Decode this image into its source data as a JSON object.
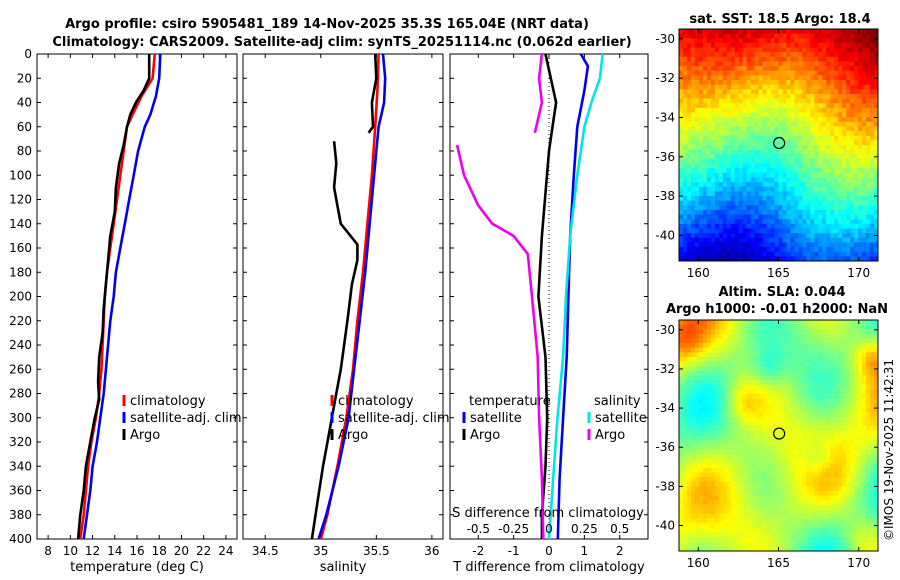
{
  "title_line1": "Argo profile: csiro 5905481_189 14-Nov-2025 35.3S 165.04E (NRT data)",
  "title_line2": "Climatology: CARS2009. Satellite-adj clim: synTS_20251114.nc (0.062d earlier)",
  "colors": {
    "clim": "#ff0000",
    "sat": "#0000ee",
    "argo": "#000000",
    "sat_s": "#00e5e5",
    "argo_s": "#ee00ee"
  },
  "chart_data": [
    {
      "type": "line",
      "name": "temperature-profile",
      "xlabel": "temperature (deg C)",
      "xlim": [
        7,
        25
      ],
      "xticks": [
        8,
        10,
        12,
        14,
        16,
        18,
        20,
        22,
        24
      ],
      "ylim": [
        0,
        400
      ],
      "yticks": [
        0,
        20,
        40,
        60,
        80,
        100,
        120,
        140,
        160,
        180,
        200,
        220,
        240,
        260,
        280,
        300,
        320,
        340,
        360,
        380,
        400
      ],
      "legend": [
        "climatology",
        "satellite-adj. clim",
        "Argo"
      ],
      "series": [
        {
          "name": "climatology",
          "color": "clim",
          "points": [
            [
              17.6,
              0
            ],
            [
              17.4,
              20
            ],
            [
              16.4,
              35
            ],
            [
              15.6,
              50
            ],
            [
              15.1,
              60
            ],
            [
              14.8,
              80
            ],
            [
              14.5,
              100
            ],
            [
              14.2,
              120
            ],
            [
              13.9,
              140
            ],
            [
              13.6,
              160
            ],
            [
              13.3,
              180
            ],
            [
              13.1,
              200
            ],
            [
              12.9,
              240
            ],
            [
              12.8,
              260
            ],
            [
              12.6,
              280
            ],
            [
              12.3,
              300
            ],
            [
              11.9,
              320
            ],
            [
              11.6,
              340
            ],
            [
              11.4,
              360
            ],
            [
              11.2,
              380
            ],
            [
              10.9,
              400
            ]
          ]
        },
        {
          "name": "satellite-adj. clim",
          "color": "sat",
          "points": [
            [
              18.1,
              0
            ],
            [
              18.0,
              20
            ],
            [
              17.7,
              35
            ],
            [
              17.2,
              50
            ],
            [
              16.7,
              60
            ],
            [
              16.1,
              80
            ],
            [
              15.7,
              100
            ],
            [
              15.3,
              120
            ],
            [
              14.9,
              140
            ],
            [
              14.5,
              160
            ],
            [
              14.1,
              180
            ],
            [
              13.9,
              200
            ],
            [
              13.6,
              220
            ],
            [
              13.4,
              240
            ],
            [
              13.2,
              260
            ],
            [
              13.0,
              280
            ],
            [
              12.7,
              300
            ],
            [
              12.4,
              320
            ],
            [
              12.0,
              340
            ],
            [
              11.8,
              360
            ],
            [
              11.5,
              380
            ],
            [
              11.2,
              400
            ]
          ]
        },
        {
          "name": "Argo",
          "color": "argo",
          "points": [
            [
              17.1,
              0
            ],
            [
              17.1,
              20
            ],
            [
              16.6,
              30
            ],
            [
              15.9,
              40
            ],
            [
              15.4,
              50
            ],
            [
              15.1,
              60
            ],
            [
              14.8,
              75
            ],
            [
              14.4,
              90
            ],
            [
              14.1,
              110
            ],
            [
              14.0,
              130
            ],
            [
              13.6,
              150
            ],
            [
              13.4,
              170
            ],
            [
              13.2,
              190
            ],
            [
              13.0,
              210
            ],
            [
              12.9,
              230
            ],
            [
              12.6,
              250
            ],
            [
              12.5,
              270
            ],
            [
              12.6,
              285
            ],
            [
              12.2,
              300
            ],
            [
              11.8,
              320
            ],
            [
              11.4,
              340
            ],
            [
              11.2,
              360
            ],
            [
              10.9,
              380
            ],
            [
              10.7,
              400
            ]
          ]
        }
      ]
    },
    {
      "type": "line",
      "name": "salinity-profile",
      "xlabel": "salinity",
      "xlim": [
        34.3,
        36.1
      ],
      "xticks": [
        34.5,
        35,
        35.5,
        36
      ],
      "xtick_labels": [
        "34.5",
        "35",
        "35.5",
        "36"
      ],
      "ylim": [
        0,
        400
      ],
      "legend": [
        "climatology",
        "satellite-adj. clim",
        "Argo"
      ],
      "series": [
        {
          "name": "climatology",
          "color": "clim",
          "points": [
            [
              35.52,
              0
            ],
            [
              35.51,
              30
            ],
            [
              35.49,
              60
            ],
            [
              35.46,
              100
            ],
            [
              35.42,
              140
            ],
            [
              35.38,
              180
            ],
            [
              35.33,
              220
            ],
            [
              35.29,
              260
            ],
            [
              35.23,
              300
            ],
            [
              35.15,
              340
            ],
            [
              35.06,
              380
            ],
            [
              35.0,
              400
            ]
          ]
        },
        {
          "name": "satellite-adj. clim",
          "color": "sat",
          "points": [
            [
              35.56,
              0
            ],
            [
              35.58,
              20
            ],
            [
              35.57,
              40
            ],
            [
              35.52,
              60
            ],
            [
              35.48,
              100
            ],
            [
              35.44,
              140
            ],
            [
              35.4,
              180
            ],
            [
              35.35,
              220
            ],
            [
              35.3,
              260
            ],
            [
              35.25,
              300
            ],
            [
              35.16,
              340
            ],
            [
              35.05,
              380
            ],
            [
              34.98,
              400
            ]
          ]
        },
        {
          "name": "Argo",
          "color": "argo",
          "points": [
            [
              35.49,
              0
            ],
            [
              35.5,
              20
            ],
            [
              35.46,
              40
            ],
            [
              35.47,
              60
            ],
            [
              35.43,
              65
            ]
          ]
        },
        {
          "name": "Argo-deep",
          "color": "argo",
          "points": [
            [
              35.12,
              72
            ],
            [
              35.14,
              90
            ],
            [
              35.12,
              110
            ],
            [
              35.15,
              125
            ],
            [
              35.18,
              140
            ],
            [
              35.33,
              157
            ],
            [
              35.33,
              170
            ],
            [
              35.28,
              190
            ],
            [
              35.24,
              220
            ],
            [
              35.18,
              260
            ],
            [
              35.14,
              280
            ],
            [
              35.08,
              310
            ],
            [
              35.02,
              340
            ],
            [
              34.97,
              370
            ],
            [
              34.92,
              400
            ]
          ]
        }
      ]
    },
    {
      "type": "line",
      "name": "difference-profile",
      "xlabel": "T difference from climatology",
      "xlim": [
        -2.8,
        2.8
      ],
      "xticks": [
        -2,
        -1,
        0,
        1,
        2
      ],
      "xtick_labels": [
        "-2",
        "-1",
        "0",
        "1",
        "2"
      ],
      "top_label": "S difference from climatology",
      "top_ticks": [
        -0.5,
        -0.25,
        0,
        0.25,
        0.5
      ],
      "top_tick_labels": [
        "-0.5",
        "-0.25",
        "0",
        "0.25",
        "0.5"
      ],
      "ylim": [
        0,
        400
      ],
      "legend_left_title": "temperature",
      "legend_left": [
        "satellite",
        "Argo"
      ],
      "legend_right_title": "salinity",
      "legend_right": [
        "satellite",
        "Argo"
      ],
      "series": [
        {
          "name": "T satellite",
          "color": "sat",
          "points": [
            [
              0.9,
              0
            ],
            [
              1.1,
              10
            ],
            [
              1.0,
              30
            ],
            [
              0.8,
              60
            ],
            [
              0.7,
              100
            ],
            [
              0.6,
              150
            ],
            [
              0.55,
              200
            ],
            [
              0.5,
              250
            ],
            [
              0.4,
              300
            ],
            [
              0.3,
              350
            ],
            [
              0.25,
              400
            ]
          ]
        },
        {
          "name": "T Argo",
          "color": "argo",
          "points": [
            [
              -0.1,
              0
            ],
            [
              0.05,
              20
            ],
            [
              0.2,
              40
            ],
            [
              0.1,
              60
            ],
            [
              0.0,
              80
            ],
            [
              -0.2,
              150
            ],
            [
              -0.3,
              200
            ],
            [
              -0.1,
              250
            ],
            [
              -0.05,
              300
            ],
            [
              -0.1,
              340
            ],
            [
              -0.2,
              380
            ],
            [
              -0.2,
              400
            ]
          ]
        },
        {
          "name": "S satellite",
          "color": "sat_s",
          "points": [
            [
              0.38,
              0
            ],
            [
              0.36,
              20
            ],
            [
              0.3,
              40
            ],
            [
              0.25,
              60
            ],
            [
              0.2,
              100
            ],
            [
              0.15,
              150
            ],
            [
              0.12,
              200
            ],
            [
              0.1,
              250
            ],
            [
              0.06,
              300
            ],
            [
              0.03,
              350
            ],
            [
              0.0,
              400
            ]
          ]
        },
        {
          "name": "S Argo",
          "color": "argo_s",
          "points": [
            [
              -0.05,
              0
            ],
            [
              -0.07,
              20
            ],
            [
              -0.05,
              40
            ],
            [
              -0.1,
              65
            ]
          ]
        },
        {
          "name": "S Argo deep",
          "color": "argo_s",
          "points": [
            [
              -0.65,
              75
            ],
            [
              -0.6,
              100
            ],
            [
              -0.5,
              125
            ],
            [
              -0.4,
              140
            ],
            [
              -0.25,
              150
            ],
            [
              -0.15,
              165
            ],
            [
              -0.12,
              200
            ],
            [
              -0.08,
              250
            ],
            [
              -0.07,
              300
            ],
            [
              -0.05,
              350
            ],
            [
              -0.04,
              400
            ]
          ]
        }
      ]
    },
    {
      "type": "heatmap",
      "name": "sst-map",
      "title": "sat. SST: 18.5 Argo: 18.4",
      "xlim": [
        158.8,
        171.2
      ],
      "ylim": [
        -41.3,
        -29.5
      ],
      "xticks": [
        160,
        165,
        170
      ],
      "yticks": [
        -30,
        -32,
        -34,
        -36,
        -38,
        -40
      ],
      "marker": [
        165.04,
        -35.3
      ]
    },
    {
      "type": "heatmap",
      "name": "sla-map",
      "title_line1": "Altim. SLA: 0.044",
      "title_line2": "Argo h1000: -0.01 h2000: NaN",
      "xlim": [
        158.8,
        171.2
      ],
      "ylim": [
        -41.3,
        -29.5
      ],
      "xticks": [
        160,
        165,
        170
      ],
      "yticks": [
        -30,
        -32,
        -34,
        -36,
        -38,
        -40
      ],
      "marker": [
        165.04,
        -35.3
      ]
    }
  ],
  "credit": "©IMOS 19-Nov-2025 11:42:31"
}
